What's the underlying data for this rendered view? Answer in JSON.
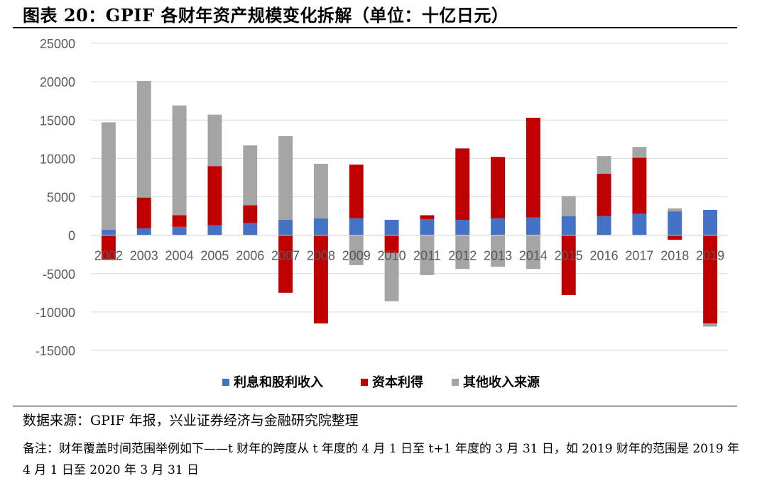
{
  "header": {
    "title": "图表 20：GPIF 各财年资产规模变化拆解（单位：十亿日元）"
  },
  "chart_data": {
    "type": "bar",
    "stacked": true,
    "categories": [
      "2002",
      "2003",
      "2004",
      "2005",
      "2006",
      "2007",
      "2008",
      "2009",
      "2010",
      "2011",
      "2012",
      "2013",
      "2014",
      "2015",
      "2016",
      "2017",
      "2018",
      "2019"
    ],
    "series": [
      {
        "name": "利息和股利收入",
        "color": "#4472c4",
        "values": [
          700,
          900,
          1100,
          1300,
          1600,
          2000,
          2200,
          2200,
          2000,
          2100,
          2000,
          2200,
          2300,
          2500,
          2500,
          2800,
          3100,
          3300
        ]
      },
      {
        "name": "资本利得",
        "color": "#c00000",
        "values": [
          -3200,
          4000,
          1500,
          7700,
          2300,
          -7500,
          -11500,
          7000,
          -2300,
          500,
          9300,
          8000,
          13000,
          -7800,
          5500,
          7300,
          -600,
          -11500
        ]
      },
      {
        "name": "其他收入来源",
        "color": "#a5a5a5",
        "values": [
          14000,
          15200,
          14300,
          6700,
          7800,
          10900,
          7100,
          -3900,
          -6300,
          -5200,
          -4400,
          -4100,
          -4400,
          2600,
          2300,
          1400,
          400,
          -400
        ]
      }
    ],
    "ylim": [
      -15000,
      25000
    ],
    "yticks": [
      "25000",
      "20000",
      "15000",
      "10000",
      "5000",
      "0",
      "-5000",
      "-10000",
      "-15000"
    ],
    "grid": true,
    "legend_position": "bottom"
  },
  "footer": {
    "source": "数据来源：GPIF 年报，兴业证券经济与金融研究院整理",
    "note": "备注：财年覆盖时间范围举例如下——t 财年的跨度从 t 年度的 4 月 1 日至 t+1 年度的 3 月 31 日，如 2019 财年的范围是 2019 年 4 月 1 日至 2020 年 3 月 31 日"
  }
}
